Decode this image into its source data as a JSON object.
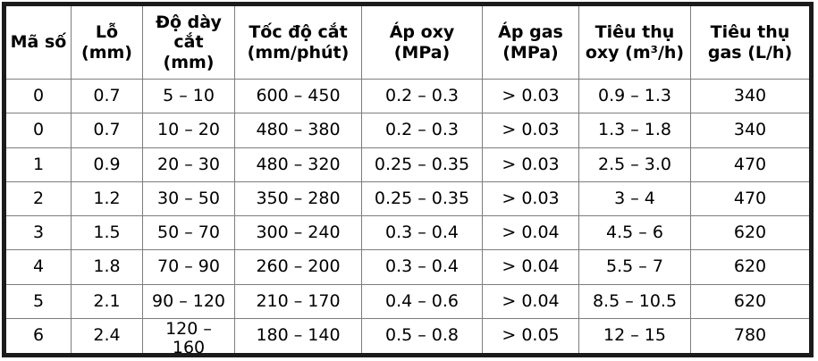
{
  "table": {
    "columns": [
      "Mã số",
      "Lỗ (mm)",
      "Độ dày cắt (mm)",
      "Tốc độ cắt (mm/phút)",
      "Áp oxy (MPa)",
      "Áp gas (MPa)",
      "Tiêu thụ oxy (m³/h)",
      "Tiêu thụ gas (L/h)"
    ],
    "rows": [
      [
        "0",
        "0.7",
        "5 – 10",
        "600 – 450",
        "0.2 – 0.3",
        "> 0.03",
        "0.9 – 1.3",
        "340"
      ],
      [
        "0",
        "0.7",
        "10 – 20",
        "480 – 380",
        "0.2 – 0.3",
        "> 0.03",
        "1.3 – 1.8",
        "340"
      ],
      [
        "1",
        "0.9",
        "20 – 30",
        "480 – 320",
        "0.25 – 0.35",
        "> 0.03",
        "2.5 – 3.0",
        "470"
      ],
      [
        "2",
        "1.2",
        "30 – 50",
        "350 – 280",
        "0.25 – 0.35",
        "> 0.03",
        "3 – 4",
        "470"
      ],
      [
        "3",
        "1.5",
        "50 – 70",
        "300 – 240",
        "0.3 – 0.4",
        "> 0.04",
        "4.5 – 6",
        "620"
      ],
      [
        "4",
        "1.8",
        "70 – 90",
        "260 – 200",
        "0.3 – 0.4",
        "> 0.04",
        "5.5 – 7",
        "620"
      ],
      [
        "5",
        "2.1",
        "90 – 120",
        "210 – 170",
        "0.4 – 0.6",
        "> 0.04",
        "8.5 – 10.5",
        "620"
      ],
      [
        "6",
        "2.4",
        "120 – 160",
        "180 – 140",
        "0.5 – 0.8",
        "> 0.05",
        "12 – 15",
        "780"
      ]
    ]
  },
  "colors": {
    "outer_border": "#1b1b1b",
    "grid_line": "#7d7d7d",
    "text": "#000000",
    "background": "#ffffff"
  }
}
